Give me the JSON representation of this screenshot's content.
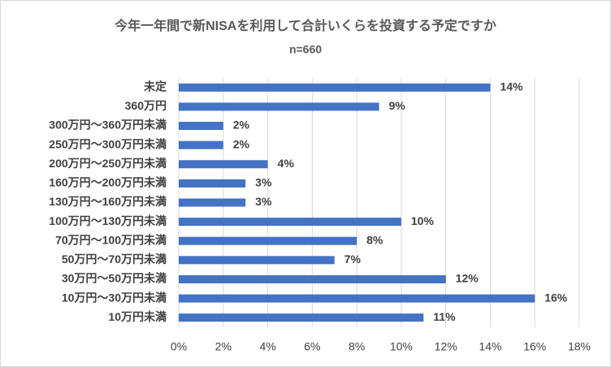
{
  "chart_data": {
    "type": "hbar",
    "title": "今年一年間で新NISAを利用して合計いくらを投資する予定ですか",
    "subtitle": "n=660",
    "categories": [
      "未定",
      "360万円",
      "300万円～360万円未満",
      "250万円～300万円未満",
      "200万円～250万円未満",
      "160万円～200万円未満",
      "130万円～160万円未満",
      "100万円～130万円未満",
      "70万円～100万円未満",
      "50万円～70万円未満",
      "30万円～50万円未満",
      "10万円～30万円未満",
      "10万円未満"
    ],
    "values": [
      14,
      9,
      2,
      2,
      4,
      3,
      3,
      10,
      8,
      7,
      12,
      16,
      11
    ],
    "value_labels": [
      "14%",
      "9%",
      "2%",
      "2%",
      "4%",
      "3%",
      "3%",
      "10%",
      "8%",
      "7%",
      "12%",
      "16%",
      "11%"
    ],
    "color": "#4472c4",
    "xlim": [
      0,
      18
    ],
    "xticks": [
      {
        "value": 0,
        "label": "0%"
      },
      {
        "value": 2,
        "label": "2%"
      },
      {
        "value": 4,
        "label": "4%"
      },
      {
        "value": 6,
        "label": "6%"
      },
      {
        "value": 8,
        "label": "8%"
      },
      {
        "value": 10,
        "label": "10%"
      },
      {
        "value": 12,
        "label": "12%"
      },
      {
        "value": 14,
        "label": "14%"
      },
      {
        "value": 16,
        "label": "16%"
      },
      {
        "value": 18,
        "label": "18%"
      }
    ],
    "grid": true
  }
}
